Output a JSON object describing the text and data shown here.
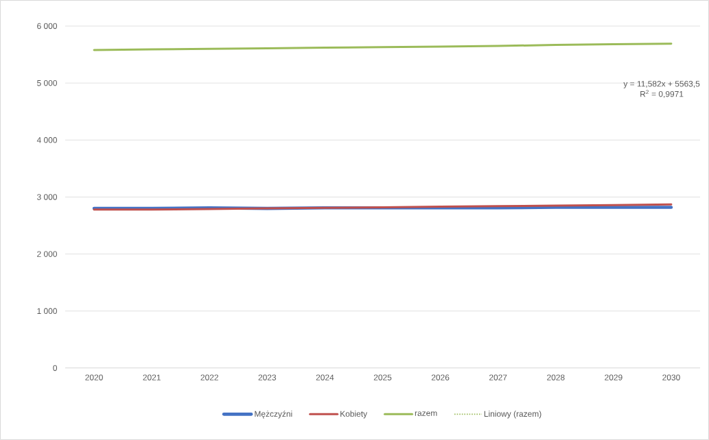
{
  "chart_data": {
    "type": "line",
    "categories": [
      "2020",
      "2021",
      "2022",
      "2023",
      "2024",
      "2025",
      "2026",
      "2027",
      "2028",
      "2029",
      "2030"
    ],
    "series": [
      {
        "name": "Mężczyźni",
        "color": "#4472c4",
        "values": [
          2800,
          2800,
          2810,
          2800,
          2810,
          2810,
          2810,
          2810,
          2820,
          2820,
          2820
        ]
      },
      {
        "name": "Kobiety",
        "color": "#c0504d",
        "values": [
          2780,
          2780,
          2790,
          2800,
          2810,
          2820,
          2830,
          2840,
          2850,
          2860,
          2870
        ]
      },
      {
        "name": "razem",
        "color": "#9bbb59",
        "values": [
          5580,
          5590,
          5600,
          5610,
          5620,
          5630,
          5640,
          5650,
          5670,
          5680,
          5690
        ]
      },
      {
        "name": "Liniowy (razem)",
        "color": "#9bbb59",
        "line_style": "dotted",
        "values": [
          null,
          null,
          null,
          null,
          null,
          null,
          null,
          null,
          null,
          null,
          null
        ]
      }
    ],
    "ylim": [
      0,
      6000
    ],
    "yticks": [
      {
        "value": 0,
        "label": "0"
      },
      {
        "value": 1000,
        "label": "1 000"
      },
      {
        "value": 2000,
        "label": "2 000"
      },
      {
        "value": 3000,
        "label": "3 000"
      },
      {
        "value": 4000,
        "label": "4 000"
      },
      {
        "value": 5000,
        "label": "5 000"
      },
      {
        "value": 6000,
        "label": "6 000"
      }
    ],
    "annotations": [
      "y = 11,582x + 5563,5",
      "R$^{2}$ = 0,9971"
    ],
    "grid": "y",
    "legend": "bottom",
    "marker": "none",
    "line_style": "solid"
  }
}
